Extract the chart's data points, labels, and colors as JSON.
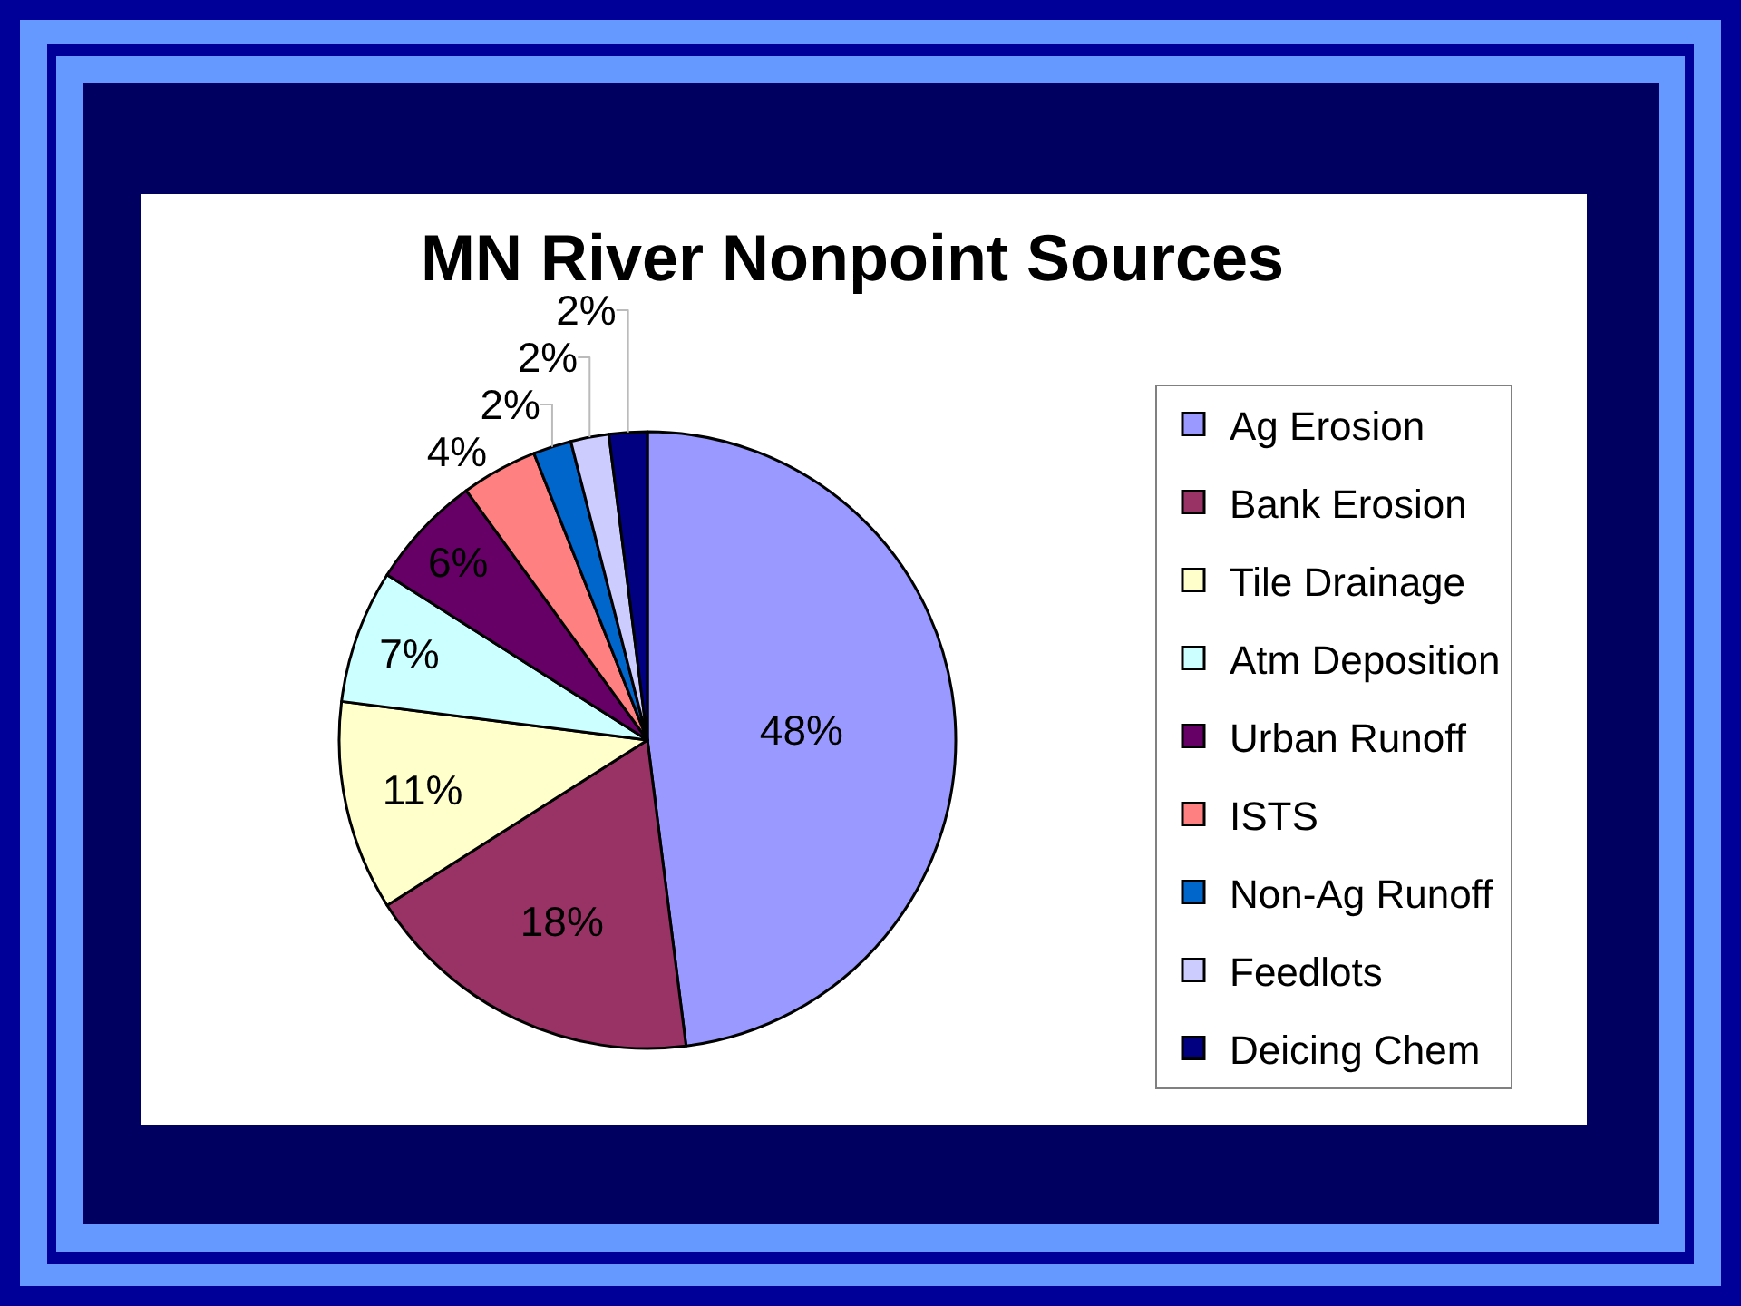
{
  "chart_data": {
    "type": "pie",
    "title": "MN River Nonpoint Sources",
    "categories": [
      "Ag Erosion",
      "Bank Erosion",
      "Tile Drainage",
      "Atm Deposition",
      "Urban Runoff",
      "ISTS",
      "Non-Ag Runoff",
      "Feedlots",
      "Deicing Chem"
    ],
    "values": [
      48,
      18,
      11,
      7,
      6,
      4,
      2,
      2,
      2
    ],
    "colors": [
      "#9999ff",
      "#993366",
      "#ffffcc",
      "#ccffff",
      "#660066",
      "#ff8080",
      "#0066cc",
      "#ccccff",
      "#000080"
    ],
    "value_labels": [
      "48%",
      "18%",
      "11%",
      "7%",
      "6%",
      "4%",
      "2%",
      "2%",
      "2%"
    ],
    "legend": "right"
  }
}
